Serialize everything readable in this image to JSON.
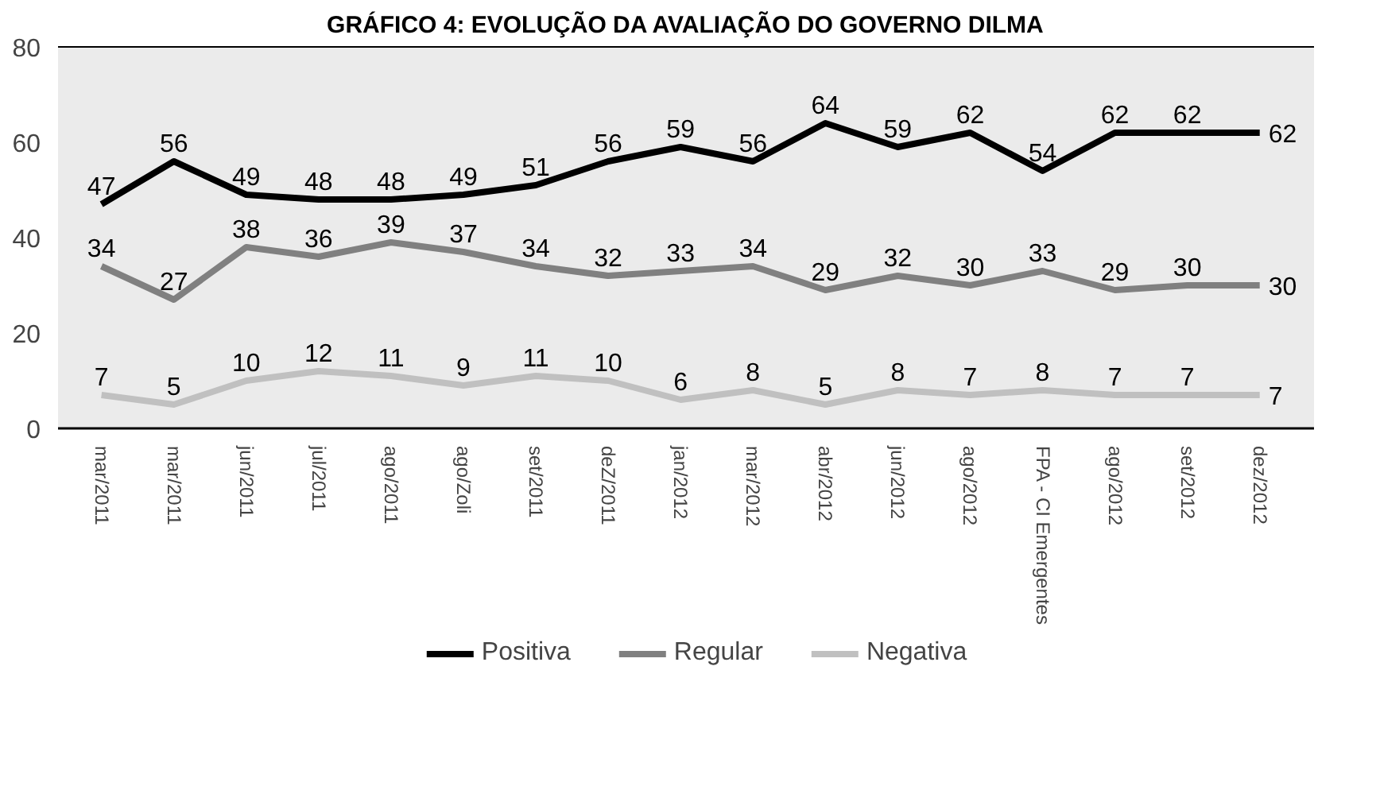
{
  "chart_data": {
    "type": "line",
    "title": "GRÁFICO 4: EVOLUÇÃO DA AVALIAÇÃO DO GOVERNO DILMA",
    "categories": [
      "mar/2011",
      "mar/2011",
      "jun/2011",
      "jul/2011",
      "ago/2011",
      "ago/Zoli",
      "set/2011",
      "deZ/2011",
      "jan/2012",
      "mar/2012",
      "abr/2012",
      "jun/2012",
      "ago/2012",
      "FPA - CI Emergentes",
      "ago/2012",
      "set/2012",
      "dez/2012"
    ],
    "series": [
      {
        "name": "Positiva",
        "color": "#000000",
        "values": [
          47,
          56,
          49,
          48,
          48,
          49,
          51,
          56,
          59,
          56,
          64,
          59,
          62,
          54,
          62,
          62,
          62
        ]
      },
      {
        "name": "Regular",
        "color": "#808080",
        "values": [
          34,
          27,
          38,
          36,
          39,
          37,
          34,
          32,
          33,
          34,
          29,
          32,
          30,
          33,
          29,
          30,
          30
        ]
      },
      {
        "name": "Negativa",
        "color": "#c0c0c0",
        "values": [
          7,
          5,
          10,
          12,
          11,
          9,
          11,
          10,
          6,
          8,
          5,
          8,
          7,
          8,
          7,
          7,
          7
        ]
      }
    ],
    "ylim": [
      0,
      80
    ],
    "yticks": [
      0,
      20,
      40,
      60,
      80
    ],
    "grid": false,
    "legend": "bottom",
    "data_labels": true,
    "line_style": "solid",
    "marker": "none"
  }
}
